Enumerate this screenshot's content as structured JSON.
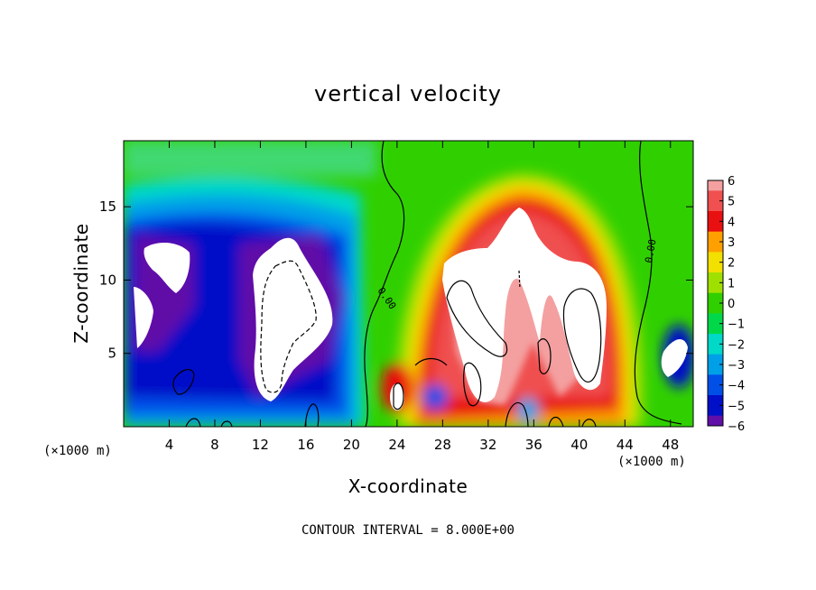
{
  "chart_data": {
    "type": "heatmap",
    "title": "vertical velocity",
    "xlabel": "X-coordinate",
    "ylabel": "Z-coordinate",
    "x_unit": "(×1000 m)",
    "x_unit_right": "(×1000 m)",
    "xlim": [
      0,
      50
    ],
    "ylim": [
      0,
      19.5
    ],
    "x_ticks": [
      4,
      8,
      12,
      16,
      20,
      24,
      28,
      32,
      36,
      40,
      44,
      48
    ],
    "y_ticks": [
      5,
      10,
      15
    ],
    "colorbar": {
      "ticks": [
        "6",
        "5",
        "4",
        "3",
        "2",
        "1",
        "0",
        "−1",
        "−2",
        "−3",
        "−4",
        "−5",
        "−6"
      ],
      "values": [
        6,
        5,
        4,
        3,
        2,
        1,
        0,
        -1,
        -2,
        -3,
        -4,
        -5,
        -6
      ],
      "colors": {
        "6": "#f4a0a0",
        "5": "#f05050",
        "4": "#e81010",
        "3": "#ffa000",
        "2": "#f2e000",
        "1": "#a0e000",
        "0": "#30d000",
        "-1": "#00d84a",
        "-2": "#00d8c8",
        "-3": "#00a0e8",
        "-4": "#0050e8",
        "-5": "#0010c8",
        "-6": "#6010a8"
      }
    },
    "contour_label": "0.00",
    "footer": "CONTOUR INTERVAL = 8.000E+00"
  }
}
